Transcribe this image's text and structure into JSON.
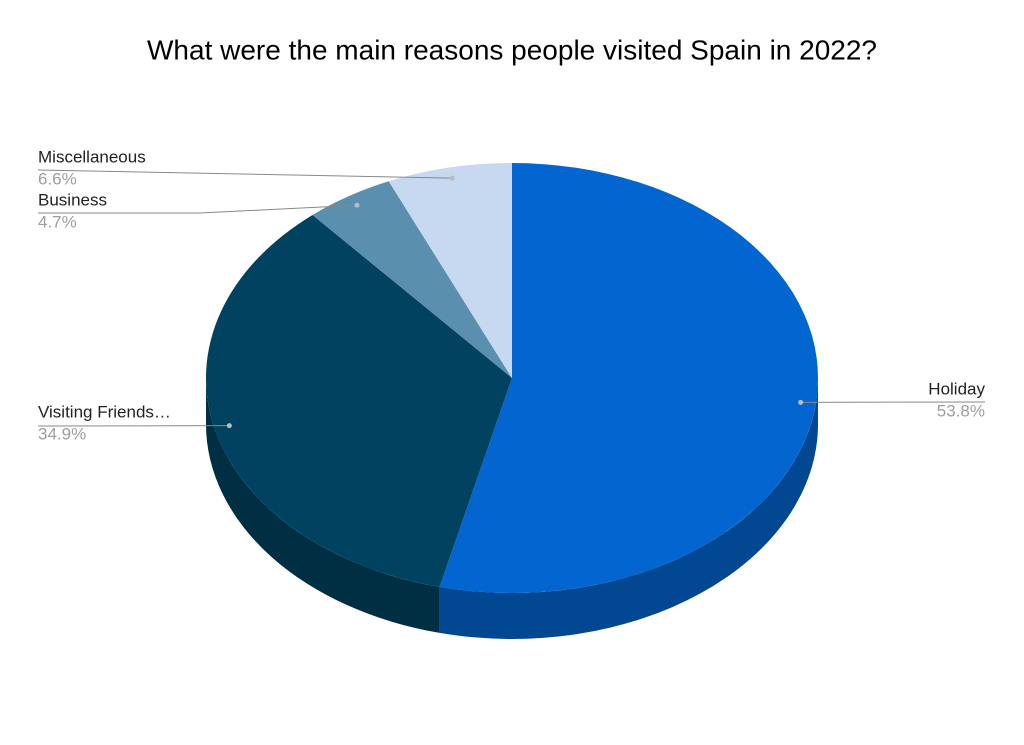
{
  "chart_data": {
    "type": "pie",
    "title": "What were the main reasons people visited Spain in 2022?",
    "categories": [
      "Holiday",
      "Visiting Friends…",
      "Business",
      "Miscellaneous"
    ],
    "values": [
      53.8,
      34.9,
      4.7,
      6.6
    ],
    "value_labels": [
      "53.8%",
      "34.9%",
      "4.7%",
      "6.6%"
    ],
    "colors": [
      "#0366d0",
      "#00425f",
      "#5a8fae",
      "#c6d9f0"
    ],
    "three_d": true
  }
}
